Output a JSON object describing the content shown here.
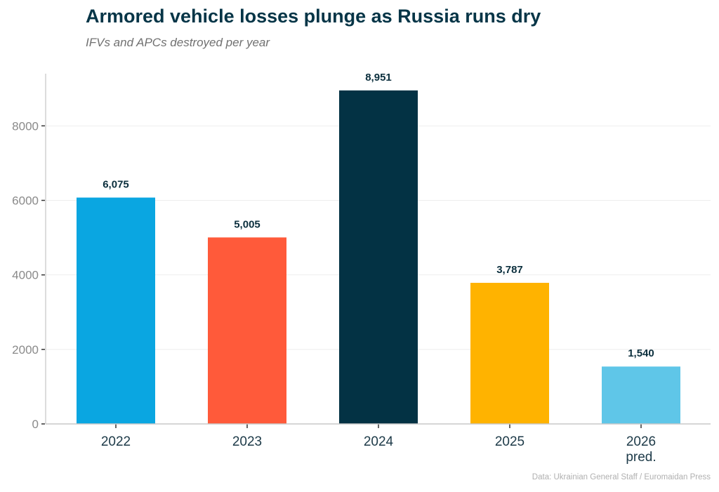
{
  "title": "Armored vehicle losses plunge as Russia runs dry",
  "subtitle": "IFVs and APCs destroyed per year",
  "source": "Data: Ukrainian General Staff / Euromaidan Press",
  "chart_data": {
    "type": "bar",
    "categories": [
      "2022",
      "2023",
      "2024",
      "2025",
      "2026\npred."
    ],
    "values": [
      6075,
      5005,
      8951,
      3787,
      1540
    ],
    "data_labels": [
      "6,075",
      "5,005",
      "8,951",
      "3,787",
      "1,540"
    ],
    "colors": [
      "#0aa6e1",
      "#ff5a3a",
      "#033244",
      "#ffb300",
      "#5fc6e8"
    ],
    "yticks": [
      0,
      2000,
      4000,
      6000,
      8000
    ],
    "ylim": [
      0,
      9400
    ],
    "grid": true,
    "xlabel": "",
    "ylabel": ""
  }
}
